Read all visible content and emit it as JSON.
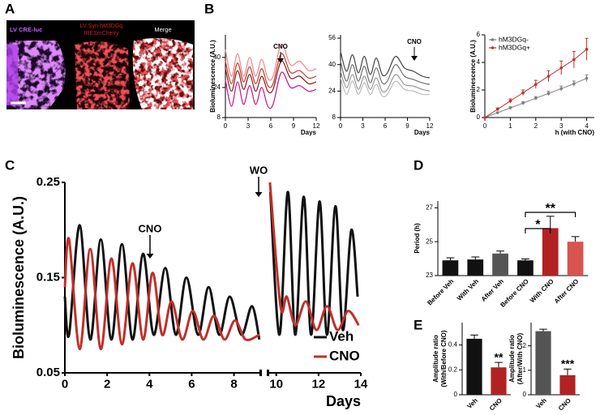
{
  "panel_labels": [
    "A",
    "B",
    "C",
    "D",
    "E"
  ],
  "image_panel": {
    "labels": [
      "LV CRE-luc",
      [
        "LV Syn-hM3DGq",
        "IRESmCherry"
      ],
      "Merge"
    ]
  },
  "chart_data": [
    {
      "type": "line",
      "ylabel": "Bioluminescence (A.U.)",
      "xlabel": "Days",
      "annotations": [
        "CNO"
      ],
      "xlim": [
        0,
        12
      ],
      "xticks": [
        0,
        3,
        6,
        9,
        12
      ],
      "ylim": [
        8,
        52
      ],
      "yticks": [
        8,
        24,
        40
      ],
      "x": [
        0,
        0.8,
        1.6,
        2.4,
        3.2,
        4.0,
        4.8,
        5.6,
        6.3,
        7.4,
        8.6,
        9.8,
        11,
        12
      ],
      "series": [
        {
          "color": "#e88a8a",
          "values": [
            44,
            30,
            42,
            30,
            40,
            30,
            39,
            29,
            30,
            47,
            36,
            38,
            33,
            34
          ]
        },
        {
          "color": "#c0392b",
          "values": [
            38,
            26,
            37,
            27,
            35,
            26,
            34,
            25,
            26,
            42,
            32,
            33,
            29,
            30
          ]
        },
        {
          "color": "#8b1a1a",
          "values": [
            34,
            22,
            33,
            23,
            31,
            22,
            30,
            22,
            23,
            38,
            29,
            30,
            26,
            27
          ]
        },
        {
          "color": "#c71585",
          "values": [
            28,
            14,
            27,
            15,
            25,
            15,
            24,
            14,
            15,
            32,
            24,
            25,
            22,
            23
          ]
        }
      ]
    },
    {
      "type": "line",
      "xlabel": "Days",
      "annotations": [
        "CNO"
      ],
      "xlim": [
        0,
        12
      ],
      "xticks": [
        0,
        3,
        6,
        9,
        12
      ],
      "ylim": [
        8,
        58
      ],
      "yticks": [
        8,
        24,
        40,
        56
      ],
      "x": [
        0,
        0.8,
        1.6,
        2.4,
        3.2,
        4.0,
        4.8,
        5.6,
        6.3,
        7.4,
        8.6,
        9.8,
        11,
        12
      ],
      "series": [
        {
          "color": "#444444",
          "values": [
            48,
            36,
            46,
            35,
            45,
            34,
            44,
            34,
            35,
            45,
            38,
            36,
            33,
            32
          ]
        },
        {
          "color": "#707070",
          "values": [
            42,
            30,
            40,
            30,
            39,
            29,
            38,
            29,
            30,
            40,
            33,
            31,
            29,
            28
          ]
        },
        {
          "color": "#999999",
          "values": [
            36,
            26,
            34,
            25,
            33,
            25,
            32,
            24,
            25,
            34,
            28,
            27,
            25,
            24
          ]
        },
        {
          "color": "#bbbbbb",
          "values": [
            32,
            22,
            30,
            22,
            29,
            22,
            28,
            21,
            22,
            30,
            25,
            24,
            22,
            22
          ]
        }
      ]
    },
    {
      "type": "line",
      "ylabel": "Bioluminescence (A.U.)",
      "xlabel": "h (with CNO)",
      "legend": "upper left",
      "xlim": [
        0,
        4.3
      ],
      "xticks": [
        0,
        1,
        2,
        3,
        4
      ],
      "ylim": [
        0,
        6
      ],
      "yticks": [
        0,
        2,
        4,
        6
      ],
      "x": [
        0,
        0.5,
        1,
        1.5,
        2,
        2.5,
        3,
        3.5,
        4
      ],
      "series": [
        {
          "name": "hM3DGq-",
          "color": "#808080",
          "values": [
            0,
            0.35,
            0.7,
            1.05,
            1.4,
            1.75,
            2.1,
            2.45,
            2.85
          ],
          "errors": [
            0,
            0.05,
            0.08,
            0.1,
            0.12,
            0.15,
            0.18,
            0.2,
            0.25
          ]
        },
        {
          "name": "hM3DGq+",
          "color": "#c0302a",
          "values": [
            0,
            0.6,
            1.2,
            1.8,
            2.4,
            3.0,
            3.6,
            4.2,
            4.95
          ],
          "errors": [
            0,
            0.1,
            0.15,
            0.2,
            0.3,
            0.4,
            0.5,
            0.6,
            0.8
          ]
        }
      ]
    },
    {
      "type": "line",
      "ylabel": "Bioluminescence (A.U.)",
      "xlabel": "Days",
      "legend": "lower right",
      "annotations": [
        "CNO",
        "WO"
      ],
      "xlim": [
        0,
        14
      ],
      "xticks": [
        0,
        2,
        4,
        6,
        8,
        10,
        12,
        14
      ],
      "ylim": [
        0.05,
        0.25
      ],
      "yticks": [
        0.05,
        0.15,
        0.25
      ],
      "series": [
        {
          "name": "Veh",
          "color": "#111111",
          "x": [
            0,
            0.2,
            0.7,
            1.2,
            1.7,
            2.2,
            2.7,
            3.2,
            3.7,
            4.2,
            4.75,
            5.25,
            5.75,
            6.3,
            6.8,
            7.3,
            7.8,
            8.35,
            8.85,
            9.2,
            9.45,
            9.72,
            10.15,
            10.55,
            10.9,
            11.3,
            11.65,
            12.05,
            12.4,
            12.8,
            13.15,
            13.55,
            13.85
          ],
          "values": [
            0.13,
            0.09,
            0.205,
            0.085,
            0.19,
            0.085,
            0.185,
            0.085,
            0.175,
            0.09,
            0.16,
            0.09,
            0.15,
            0.09,
            0.14,
            0.09,
            0.13,
            0.09,
            0.12,
            0.085,
            null,
            0.24,
            0.09,
            0.24,
            0.09,
            0.235,
            0.09,
            0.23,
            0.09,
            0.225,
            0.095,
            0.2,
            0.13
          ]
        },
        {
          "name": "CNO",
          "color": "#c0302a",
          "x": [
            0,
            0.2,
            0.7,
            1.2,
            1.7,
            2.2,
            2.7,
            3.2,
            3.7,
            4.15,
            4.6,
            5.05,
            5.55,
            6.05,
            6.55,
            7.05,
            7.55,
            8.05,
            8.55,
            9.2,
            9.45,
            9.7,
            10.2,
            10.5,
            10.9,
            11.4,
            11.9,
            12.4,
            12.9,
            13.4,
            13.9
          ],
          "values": [
            0.14,
            0.19,
            0.075,
            0.18,
            0.075,
            0.17,
            0.08,
            0.165,
            0.085,
            0.155,
            0.09,
            0.125,
            0.085,
            0.115,
            0.085,
            0.11,
            0.085,
            0.105,
            0.085,
            0.09,
            null,
            0.25,
            0.12,
            0.13,
            0.1,
            0.125,
            0.095,
            0.12,
            0.095,
            0.115,
            0.1
          ]
        }
      ]
    },
    {
      "type": "bar",
      "ylabel": "Period (h)",
      "annotations": [
        "*",
        "**"
      ],
      "categories": [
        "Before Veh",
        "With Veh",
        "After Veh",
        "Before CNO",
        "With CNO",
        "After CNO"
      ],
      "values": [
        23.9,
        23.95,
        24.3,
        23.9,
        25.8,
        25.0
      ],
      "errors": [
        0.15,
        0.15,
        0.15,
        0.08,
        0.7,
        0.3
      ],
      "colors": [
        "#111111",
        "#111111",
        "#555555",
        "#111111",
        "#b22222",
        "#d9534f"
      ],
      "ylim": [
        23,
        27.4
      ],
      "yticks": [
        23,
        25,
        27
      ]
    },
    {
      "type": "bar",
      "ylabel": [
        "Amplitude ratio",
        "(With/Before CNO)"
      ],
      "annotations": [
        "**"
      ],
      "categories": [
        "Veh",
        "CNO"
      ],
      "values": [
        0.45,
        0.22
      ],
      "errors": [
        0.03,
        0.04
      ],
      "colors": [
        "#111111",
        "#b22222"
      ],
      "ylim": [
        0,
        0.58
      ],
      "yticks": [
        0,
        0.2,
        0.4
      ]
    },
    {
      "type": "bar",
      "ylabel": [
        "Amplitude ratio",
        "(After/With CNO)"
      ],
      "annotations": [
        "***"
      ],
      "categories": [
        "Veh",
        "CNO"
      ],
      "values": [
        2.6,
        0.8
      ],
      "errors": [
        0.08,
        0.25
      ],
      "colors": [
        "#555555",
        "#b22222"
      ],
      "ylim": [
        0,
        2.95
      ],
      "yticks": [
        0,
        1,
        2
      ]
    }
  ]
}
